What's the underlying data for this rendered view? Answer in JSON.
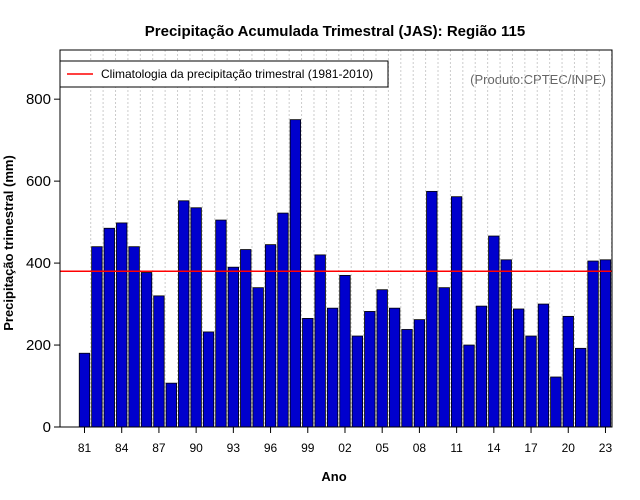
{
  "chart_data": {
    "type": "bar",
    "title": "Precipitação Acumulada Trimestral (JAS): Região 115",
    "xlabel": "Ano",
    "ylabel": "Precipitação trimestral (mm)",
    "credit": "(Produto:CPTEC/INPE)",
    "legend": {
      "label": "Climatologia da precipitação trimestral (1981-2010)",
      "position": "top-left"
    },
    "climatology": 380,
    "ylim": [
      0,
      920
    ],
    "yticks": [
      0,
      200,
      400,
      600,
      800
    ],
    "years": [
      1981,
      1982,
      1983,
      1984,
      1985,
      1986,
      1987,
      1988,
      1989,
      1990,
      1991,
      1992,
      1993,
      1994,
      1995,
      1996,
      1997,
      1998,
      1999,
      2000,
      2001,
      2002,
      2003,
      2004,
      2005,
      2006,
      2007,
      2008,
      2009,
      2010,
      2011,
      2012,
      2013,
      2014,
      2015,
      2016,
      2017,
      2018,
      2019,
      2020,
      2021,
      2022,
      2023
    ],
    "xtick_labels": [
      "81",
      "84",
      "87",
      "90",
      "93",
      "96",
      "99",
      "02",
      "05",
      "08",
      "11",
      "14",
      "17",
      "20",
      "23"
    ],
    "xtick_years": [
      1981,
      1984,
      1987,
      1990,
      1993,
      1996,
      1999,
      2002,
      2005,
      2008,
      2011,
      2014,
      2017,
      2020,
      2023
    ],
    "values": [
      180,
      440,
      485,
      498,
      440,
      377,
      320,
      107,
      552,
      535,
      232,
      505,
      390,
      433,
      340,
      445,
      522,
      750,
      265,
      420,
      290,
      370,
      222,
      282,
      335,
      290,
      238,
      262,
      575,
      340,
      562,
      200,
      295,
      466,
      408,
      288,
      222,
      300,
      122,
      270,
      192,
      405,
      408
    ],
    "colors": {
      "bar": "#0000cd",
      "climatology": "#ff0000",
      "grid": "#cccccc"
    }
  }
}
